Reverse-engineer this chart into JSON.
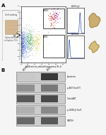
{
  "panel_a_label": "A",
  "panel_b_label": "B",
  "flow_xlabel": "ALDH activity related fluorescence (FL-1)",
  "flow_ylabel": "SSC",
  "aldh_pos_label": "ALDH+",
  "aldh_neg_label": "ALDH-",
  "side_top_title": "ALDHhigh",
  "side_bot_title": "ALDHlow",
  "cell_sorting_label": "Cell sorting",
  "spheroid_label": "Spheroids and\ncellsphere 72 h",
  "wb_labels": [
    "β-catenin",
    "p-AKT Ser473",
    "Total AKT",
    "p-GSK3-β Ser9",
    "GAPDH"
  ],
  "lane_labels": [
    "ALDH+",
    "ALDH-"
  ],
  "background_color": "#f2f2f2",
  "wb_bg": "#d8d8d8",
  "wb_band_colors_row0": [
    "#c8c8c8",
    "#383838"
  ],
  "wb_band_colors_row1": [
    "#909090",
    "#787878"
  ],
  "wb_band_colors_row2": [
    "#585858",
    "#484848"
  ],
  "wb_band_colors_row3": [
    "#b0b0b0",
    "#888888"
  ],
  "wb_band_colors_row4": [
    "#686868",
    "#585858"
  ]
}
